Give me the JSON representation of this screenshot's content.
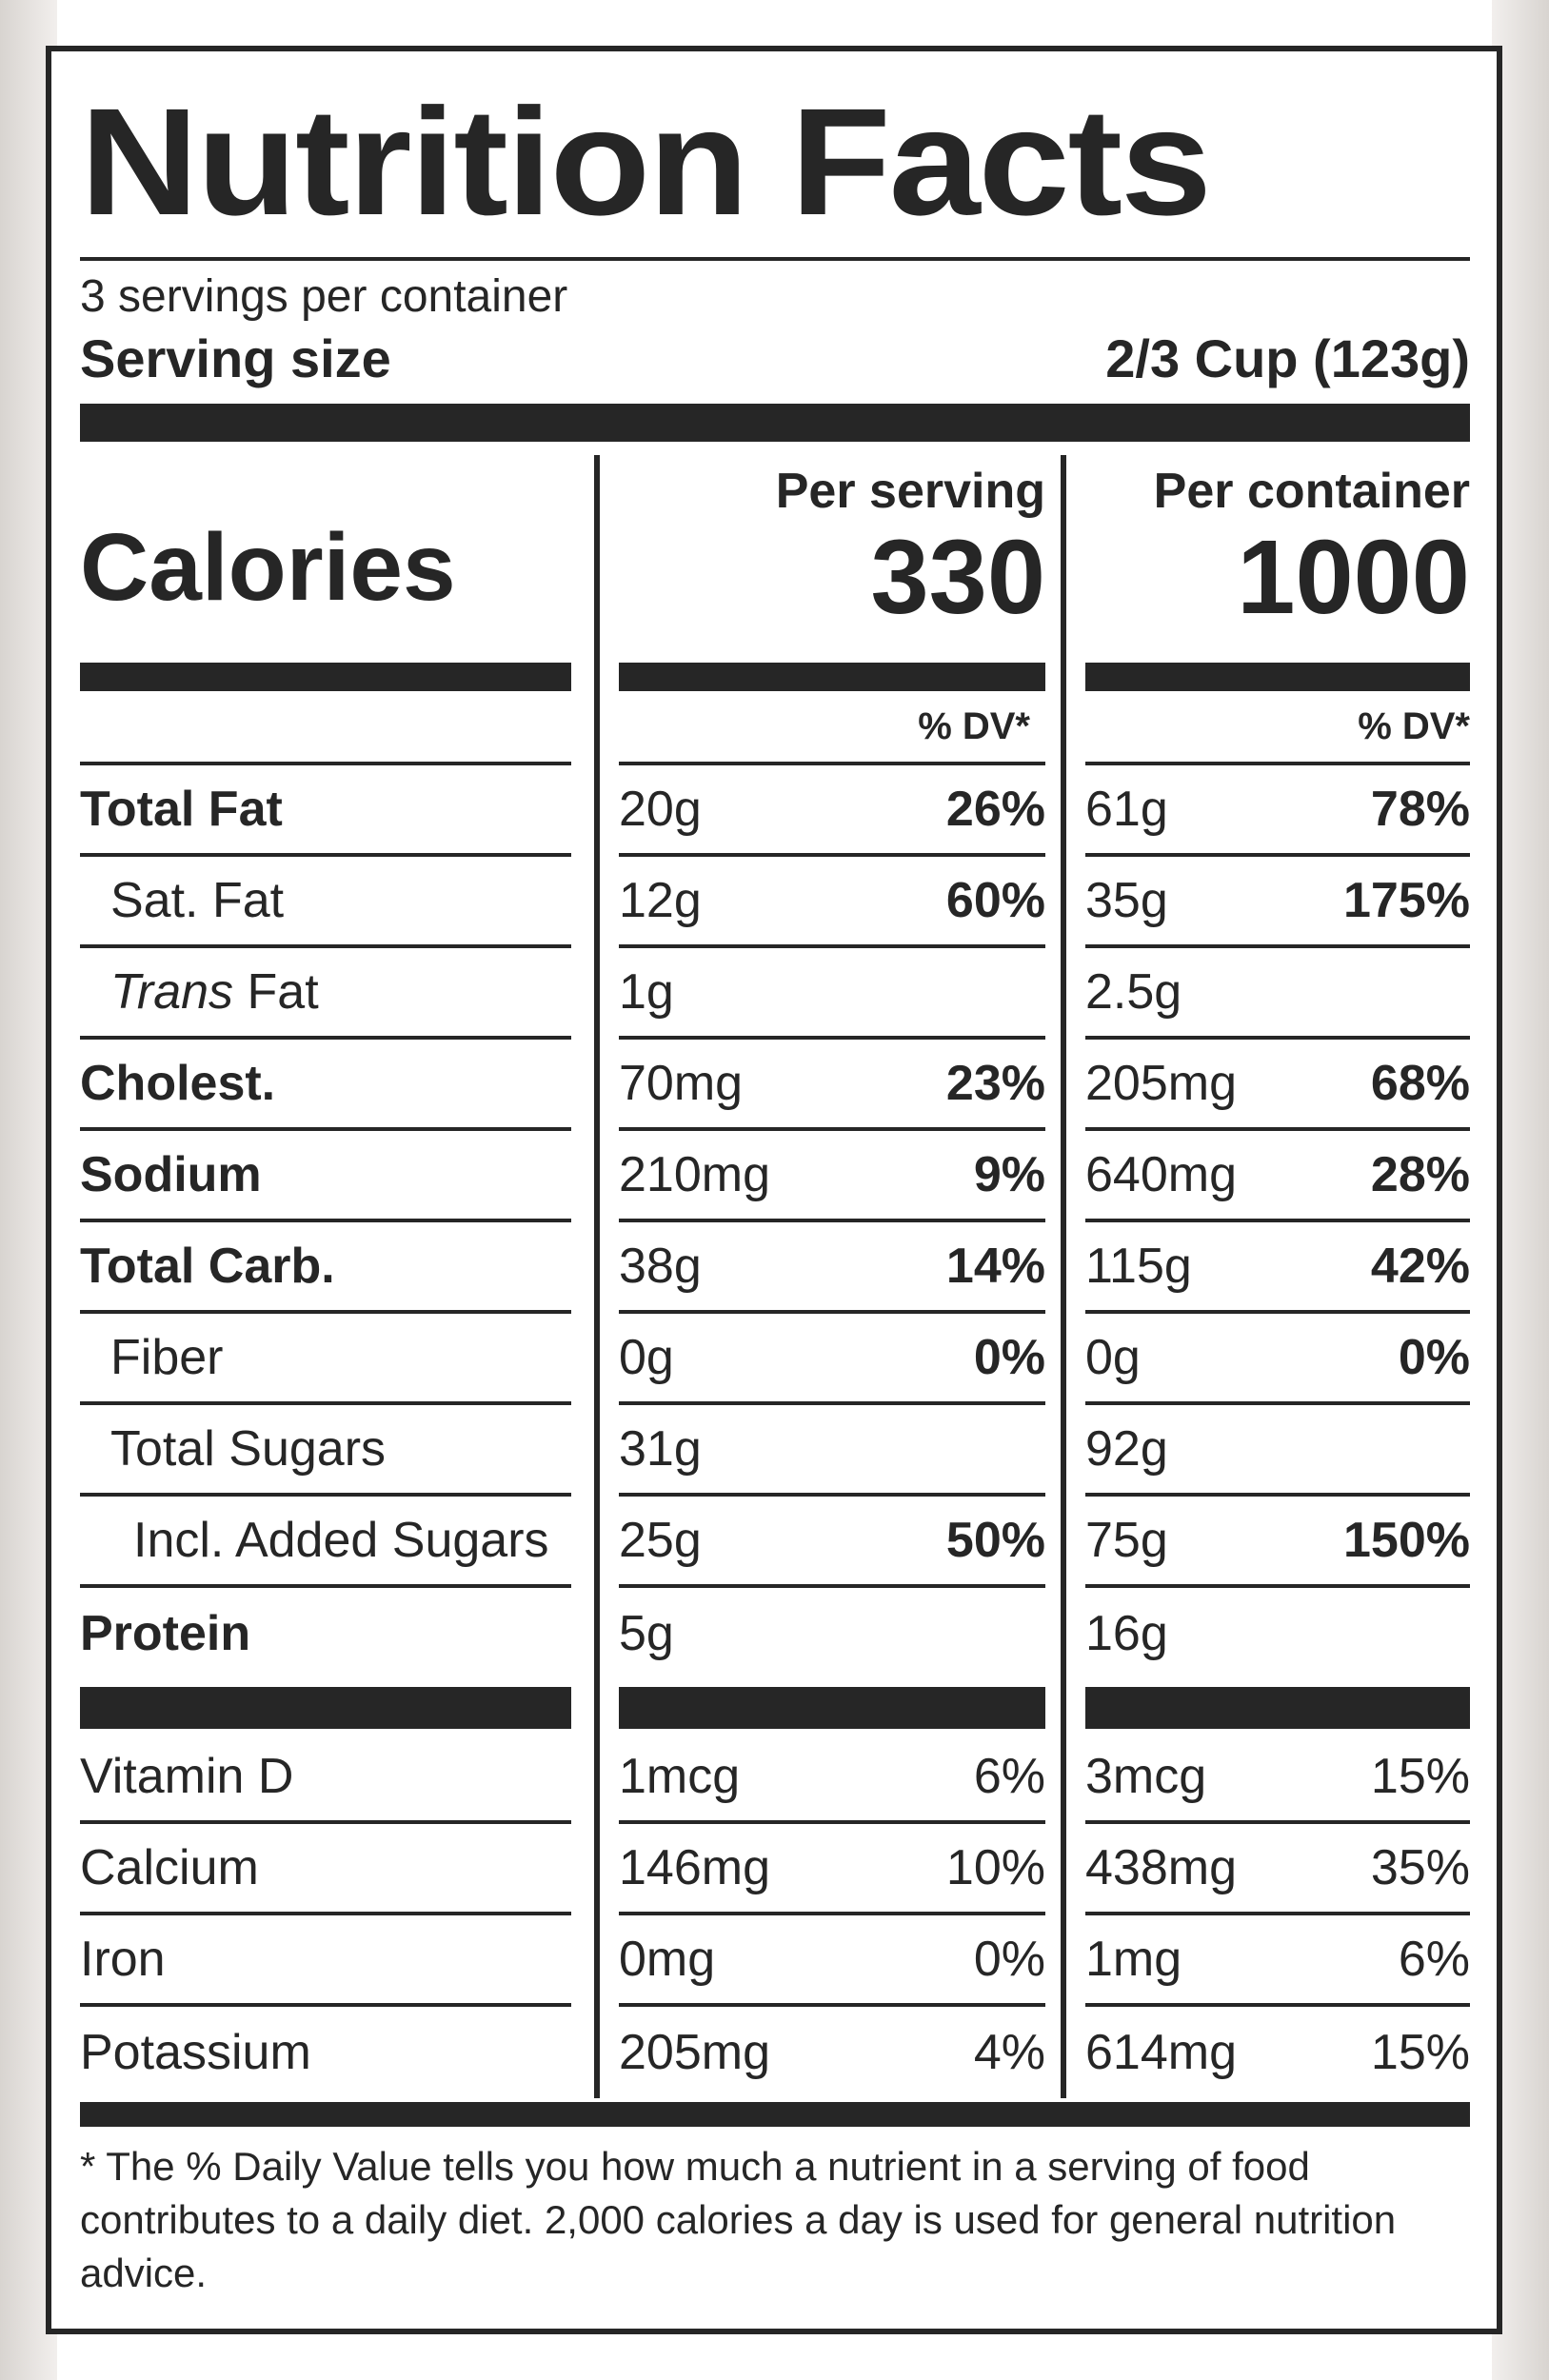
{
  "title": "Nutrition Facts",
  "servings_per_container": "3 servings per container",
  "serving_size_label": "Serving size",
  "serving_size_value": "2/3 Cup (123g)",
  "calories": {
    "label": "Calories",
    "per_serving_label": "Per serving",
    "per_serving_value": "330",
    "per_container_label": "Per container",
    "per_container_value": "1000"
  },
  "dv_header": "% DV*",
  "nutrients": [
    {
      "name": "Total Fat",
      "serving_amt": "20g",
      "serving_dv": "26%",
      "container_amt": "61g",
      "container_dv": "78%"
    },
    {
      "name": "Sat. Fat",
      "serving_amt": "12g",
      "serving_dv": "60%",
      "container_amt": "35g",
      "container_dv": "175%"
    },
    {
      "name_italic": "Trans",
      "name_rest": " Fat",
      "serving_amt": "1g",
      "serving_dv": "",
      "container_amt": "2.5g",
      "container_dv": ""
    },
    {
      "name": "Cholest.",
      "serving_amt": "70mg",
      "serving_dv": "23%",
      "container_amt": "205mg",
      "container_dv": "68%"
    },
    {
      "name": "Sodium",
      "serving_amt": "210mg",
      "serving_dv": "9%",
      "container_amt": "640mg",
      "container_dv": "28%"
    },
    {
      "name": "Total Carb.",
      "serving_amt": "38g",
      "serving_dv": "14%",
      "container_amt": "115g",
      "container_dv": "42%"
    },
    {
      "name": "Fiber",
      "serving_amt": "0g",
      "serving_dv": "0%",
      "container_amt": "0g",
      "container_dv": "0%"
    },
    {
      "name": "Total Sugars",
      "serving_amt": "31g",
      "serving_dv": "",
      "container_amt": "92g",
      "container_dv": ""
    },
    {
      "name": "Incl. Added Sugars",
      "serving_amt": "25g",
      "serving_dv": "50%",
      "container_amt": "75g",
      "container_dv": "150%"
    },
    {
      "name": "Protein",
      "serving_amt": "5g",
      "serving_dv": "",
      "container_amt": "16g",
      "container_dv": ""
    }
  ],
  "vitamins": [
    {
      "name": "Vitamin D",
      "serving_amt": "1mcg",
      "serving_dv": "6%",
      "container_amt": "3mcg",
      "container_dv": "15%"
    },
    {
      "name": "Calcium",
      "serving_amt": "146mg",
      "serving_dv": "10%",
      "container_amt": "438mg",
      "container_dv": "35%"
    },
    {
      "name": "Iron",
      "serving_amt": "0mg",
      "serving_dv": "0%",
      "container_amt": "1mg",
      "container_dv": "6%"
    },
    {
      "name": "Potassium",
      "serving_amt": "205mg",
      "serving_dv": "4%",
      "container_amt": "614mg",
      "container_dv": "15%"
    }
  ],
  "footnote": "* The % Daily Value tells you how much a nutrient in a serving of food contributes to a daily diet. 2,000 calories a day is used for general nutrition advice."
}
